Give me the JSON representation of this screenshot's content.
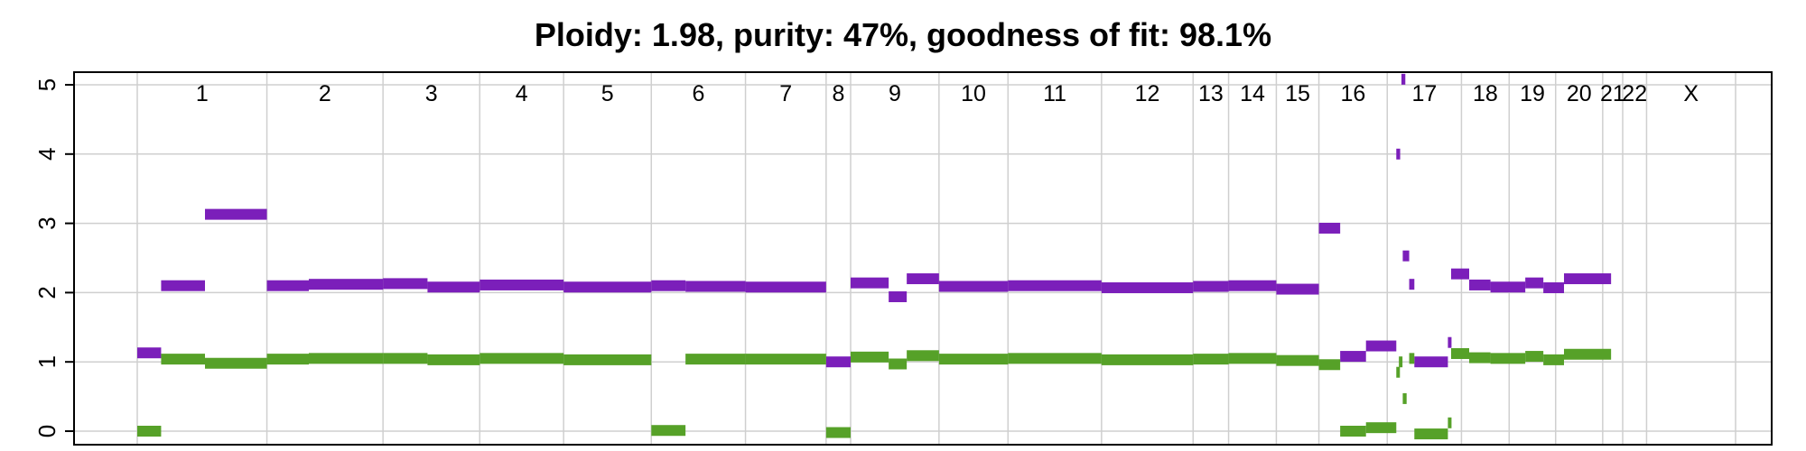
{
  "chart_data": {
    "type": "segments",
    "title": "Ploidy: 1.98, purity: 47%, goodness of fit: 98.1%",
    "ylim": [
      0,
      5
    ],
    "yticks": [
      "0",
      "1",
      "2",
      "3",
      "4",
      "5"
    ],
    "grid": true,
    "colors": {
      "major": "#7b1fba",
      "minor": "#56a128",
      "grid": "#cfcfcf",
      "frame": "#000000"
    },
    "chromosomes": [
      {
        "name": "1",
        "start": 0,
        "end": 2.01
      },
      {
        "name": "2",
        "start": 2.01,
        "end": 3.81
      },
      {
        "name": "3",
        "start": 3.81,
        "end": 5.31
      },
      {
        "name": "4",
        "start": 5.31,
        "end": 6.61
      },
      {
        "name": "5",
        "start": 6.61,
        "end": 7.97
      },
      {
        "name": "6",
        "start": 7.97,
        "end": 9.43
      },
      {
        "name": "7",
        "start": 9.43,
        "end": 10.68
      },
      {
        "name": "8",
        "start": 10.68,
        "end": 11.06
      },
      {
        "name": "9",
        "start": 11.06,
        "end": 12.43
      },
      {
        "name": "10",
        "start": 12.43,
        "end": 13.5
      },
      {
        "name": "11",
        "start": 13.5,
        "end": 14.95
      },
      {
        "name": "12",
        "start": 14.95,
        "end": 16.37
      },
      {
        "name": "13",
        "start": 16.37,
        "end": 16.92
      },
      {
        "name": "14",
        "start": 16.92,
        "end": 17.66
      },
      {
        "name": "15",
        "start": 17.66,
        "end": 18.32
      },
      {
        "name": "16",
        "start": 18.32,
        "end": 19.38
      },
      {
        "name": "17",
        "start": 19.38,
        "end": 20.53
      },
      {
        "name": "18",
        "start": 20.53,
        "end": 21.27
      },
      {
        "name": "19",
        "start": 21.27,
        "end": 21.99
      },
      {
        "name": "20",
        "start": 21.99,
        "end": 22.72
      },
      {
        "name": "21",
        "start": 22.72,
        "end": 23.03
      },
      {
        "name": "22",
        "start": 23.03,
        "end": 23.4
      },
      {
        "name": "X",
        "start": 23.4,
        "end": 24.78
      }
    ],
    "series": [
      {
        "kind": "major",
        "segments": [
          {
            "start": 0,
            "end": 0.37,
            "value": 1.13
          },
          {
            "start": 0.37,
            "end": 1.05,
            "value": 2.1
          },
          {
            "start": 1.05,
            "end": 2.01,
            "value": 3.13
          },
          {
            "start": 2.01,
            "end": 2.66,
            "value": 2.1
          },
          {
            "start": 2.66,
            "end": 3.81,
            "value": 2.12
          },
          {
            "start": 3.81,
            "end": 4.5,
            "value": 2.13
          },
          {
            "start": 4.5,
            "end": 5.31,
            "value": 2.08
          },
          {
            "start": 5.31,
            "end": 6.61,
            "value": 2.11
          },
          {
            "start": 6.61,
            "end": 7.97,
            "value": 2.08
          },
          {
            "start": 7.97,
            "end": 8.5,
            "value": 2.1
          },
          {
            "start": 8.5,
            "end": 9.43,
            "value": 2.09
          },
          {
            "start": 9.43,
            "end": 10.68,
            "value": 2.08
          },
          {
            "start": 10.68,
            "end": 11.06,
            "value": 1.0
          },
          {
            "start": 11.06,
            "end": 11.65,
            "value": 2.14
          },
          {
            "start": 11.65,
            "end": 11.93,
            "value": 1.94
          },
          {
            "start": 11.93,
            "end": 12.43,
            "value": 2.2
          },
          {
            "start": 12.43,
            "end": 13.5,
            "value": 2.09
          },
          {
            "start": 13.5,
            "end": 14.95,
            "value": 2.1
          },
          {
            "start": 14.95,
            "end": 16.37,
            "value": 2.07
          },
          {
            "start": 16.37,
            "end": 16.92,
            "value": 2.09
          },
          {
            "start": 16.92,
            "end": 17.66,
            "value": 2.1
          },
          {
            "start": 17.66,
            "end": 18.32,
            "value": 2.05
          },
          {
            "start": 18.32,
            "end": 18.65,
            "value": 2.93
          },
          {
            "start": 18.65,
            "end": 19.05,
            "value": 1.08
          },
          {
            "start": 19.05,
            "end": 19.52,
            "value": 1.23
          },
          {
            "start": 19.52,
            "end": 19.58,
            "value": 4.0
          },
          {
            "start": 19.6,
            "end": 19.66,
            "value": 5.08
          },
          {
            "start": 19.62,
            "end": 19.72,
            "value": 2.53
          },
          {
            "start": 19.72,
            "end": 19.8,
            "value": 2.12
          },
          {
            "start": 19.8,
            "end": 20.32,
            "value": 1.0
          },
          {
            "start": 20.32,
            "end": 20.37,
            "value": 1.28
          },
          {
            "start": 20.37,
            "end": 20.65,
            "value": 2.27
          },
          {
            "start": 20.65,
            "end": 20.98,
            "value": 2.11
          },
          {
            "start": 20.98,
            "end": 21.52,
            "value": 2.08
          },
          {
            "start": 21.52,
            "end": 21.8,
            "value": 2.14
          },
          {
            "start": 21.8,
            "end": 22.12,
            "value": 2.07
          },
          {
            "start": 22.12,
            "end": 22.85,
            "value": 2.2
          }
        ]
      },
      {
        "kind": "minor",
        "segments": [
          {
            "start": 0,
            "end": 0.37,
            "value": 0.0
          },
          {
            "start": 0.37,
            "end": 1.05,
            "value": 1.04
          },
          {
            "start": 1.05,
            "end": 2.01,
            "value": 0.98
          },
          {
            "start": 2.01,
            "end": 2.66,
            "value": 1.04
          },
          {
            "start": 2.66,
            "end": 3.81,
            "value": 1.05
          },
          {
            "start": 3.81,
            "end": 4.5,
            "value": 1.05
          },
          {
            "start": 4.5,
            "end": 5.31,
            "value": 1.03
          },
          {
            "start": 5.31,
            "end": 6.61,
            "value": 1.05
          },
          {
            "start": 6.61,
            "end": 7.97,
            "value": 1.03
          },
          {
            "start": 7.97,
            "end": 8.5,
            "value": 0.01
          },
          {
            "start": 8.5,
            "end": 9.43,
            "value": 1.04
          },
          {
            "start": 9.43,
            "end": 10.68,
            "value": 1.04
          },
          {
            "start": 10.68,
            "end": 11.06,
            "value": -0.02
          },
          {
            "start": 11.06,
            "end": 11.65,
            "value": 1.07
          },
          {
            "start": 11.65,
            "end": 11.93,
            "value": 0.97
          },
          {
            "start": 11.93,
            "end": 12.43,
            "value": 1.09
          },
          {
            "start": 12.43,
            "end": 13.5,
            "value": 1.04
          },
          {
            "start": 13.5,
            "end": 14.95,
            "value": 1.05
          },
          {
            "start": 14.95,
            "end": 16.37,
            "value": 1.03
          },
          {
            "start": 16.37,
            "end": 16.92,
            "value": 1.04
          },
          {
            "start": 16.92,
            "end": 17.66,
            "value": 1.05
          },
          {
            "start": 17.66,
            "end": 18.32,
            "value": 1.02
          },
          {
            "start": 18.32,
            "end": 18.65,
            "value": 0.96
          },
          {
            "start": 18.65,
            "end": 19.05,
            "value": 0.0
          },
          {
            "start": 19.05,
            "end": 19.52,
            "value": 0.05
          },
          {
            "start": 19.52,
            "end": 19.56,
            "value": 0.85
          },
          {
            "start": 19.56,
            "end": 19.6,
            "value": 1.0
          },
          {
            "start": 19.62,
            "end": 19.68,
            "value": 0.47
          },
          {
            "start": 19.72,
            "end": 19.8,
            "value": 1.05
          },
          {
            "start": 19.8,
            "end": 20.32,
            "value": -0.04
          },
          {
            "start": 20.32,
            "end": 20.37,
            "value": 0.12
          },
          {
            "start": 20.37,
            "end": 20.65,
            "value": 1.12
          },
          {
            "start": 20.65,
            "end": 20.98,
            "value": 1.06
          },
          {
            "start": 20.98,
            "end": 21.52,
            "value": 1.05
          },
          {
            "start": 21.52,
            "end": 21.8,
            "value": 1.08
          },
          {
            "start": 21.8,
            "end": 22.12,
            "value": 1.03
          },
          {
            "start": 22.12,
            "end": 22.85,
            "value": 1.11
          }
        ]
      }
    ]
  }
}
